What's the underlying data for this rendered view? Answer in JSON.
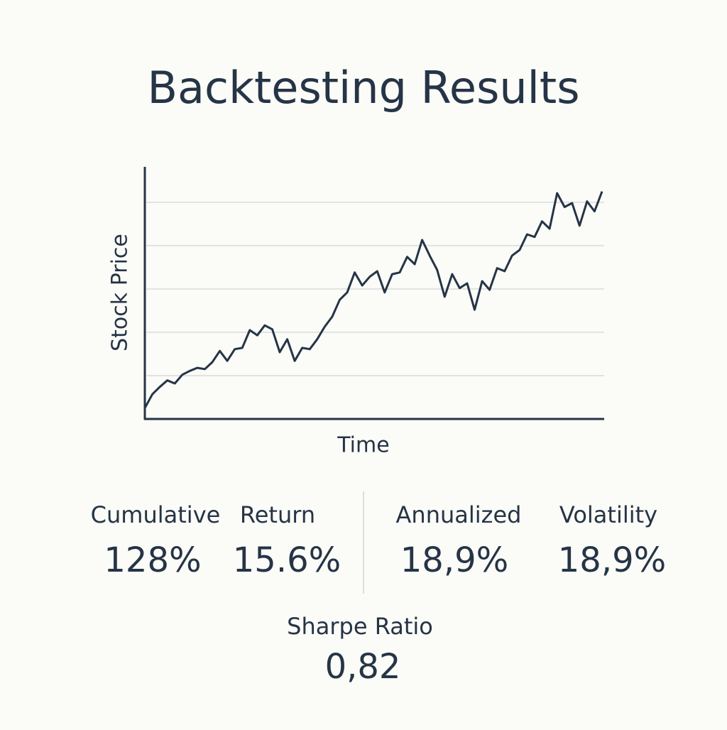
{
  "chart_data": {
    "type": "line",
    "title": "Backtesting Results",
    "x_label": "Time",
    "y_label": "Stock Price",
    "color": "#253446",
    "grid": true,
    "ylim": [
      0,
      5.8
    ],
    "yticks": [
      1,
      2,
      3,
      4,
      5
    ],
    "values": [
      0.25,
      0.57,
      0.74,
      0.89,
      0.82,
      1.02,
      1.11,
      1.18,
      1.15,
      1.31,
      1.57,
      1.34,
      1.61,
      1.64,
      2.05,
      1.93,
      2.16,
      2.07,
      1.54,
      1.84,
      1.34,
      1.64,
      1.61,
      1.84,
      2.13,
      2.36,
      2.75,
      2.92,
      3.38,
      3.08,
      3.28,
      3.41,
      2.92,
      3.34,
      3.38,
      3.74,
      3.57,
      4.13,
      3.77,
      3.44,
      2.82,
      3.34,
      3.02,
      3.13,
      2.52,
      3.18,
      2.98,
      3.48,
      3.41,
      3.77,
      3.9,
      4.26,
      4.2,
      4.56,
      4.39,
      5.21,
      4.89,
      4.98,
      4.46,
      5.02,
      4.79,
      5.25
    ]
  },
  "metrics": {
    "row": [
      {
        "label": "Cumulative",
        "value": "128%"
      },
      {
        "label": "Return",
        "value": "15.6%"
      },
      {
        "label": "Annualized",
        "value": "18,9%"
      },
      {
        "label": "Volatility",
        "value": "18,9%"
      }
    ],
    "sharpe": {
      "label": "Sharpe Ratio",
      "value": "0,82"
    }
  }
}
